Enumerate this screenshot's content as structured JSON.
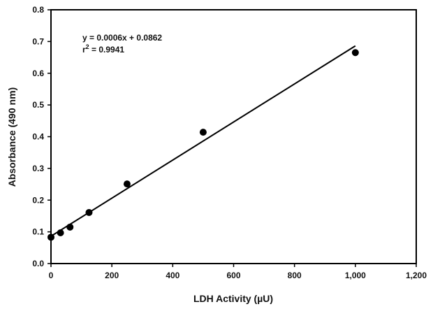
{
  "chart_data": {
    "type": "scatter",
    "xlabel": "LDH Activity (µU)",
    "ylabel": "Absorbance (490 nm)",
    "xlim": [
      0,
      1200
    ],
    "ylim": [
      0,
      0.8
    ],
    "x_ticks": [
      0,
      200,
      400,
      600,
      800,
      1000,
      1200
    ],
    "x_tick_labels": [
      "0",
      "200",
      "400",
      "600",
      "800",
      "1,000",
      "1,200"
    ],
    "y_ticks": [
      0.0,
      0.1,
      0.2,
      0.3,
      0.4,
      0.5,
      0.6,
      0.7,
      0.8
    ],
    "y_tick_labels": [
      "0.0",
      "0.1",
      "0.2",
      "0.3",
      "0.4",
      "0.5",
      "0.6",
      "0.7",
      "0.8"
    ],
    "grid": false,
    "points": {
      "x": [
        0,
        31.25,
        62.5,
        125,
        250,
        500,
        1000
      ],
      "y": [
        0.083,
        0.097,
        0.115,
        0.161,
        0.251,
        0.414,
        0.665
      ]
    },
    "trendline": {
      "slope": 0.0006,
      "intercept": 0.0862,
      "x_range": [
        0,
        1000
      ]
    },
    "annotations": {
      "equation": "y = 0.0006x + 0.0862",
      "r2_prefix": "r",
      "r2_superscript": "2",
      "r2_value": " = 0.9941"
    },
    "colors": {
      "marker": "#000000",
      "line": "#000000",
      "axis": "#000000"
    }
  }
}
